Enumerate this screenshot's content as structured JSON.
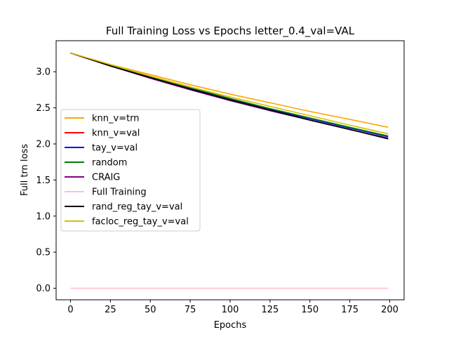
{
  "chart_data": {
    "type": "line",
    "title": "Full Training Loss vs Epochs letter_0.4_val=VAL",
    "xlabel": "Epochs",
    "ylabel": "Full trn loss",
    "xlim": [
      -9,
      209
    ],
    "ylim": [
      -0.16,
      3.43
    ],
    "xticks": [
      0,
      25,
      50,
      75,
      100,
      125,
      150,
      175,
      200
    ],
    "yticks": [
      0.0,
      0.5,
      1.0,
      1.5,
      2.0,
      2.5,
      3.0
    ],
    "xtick_labels": [
      "0",
      "25",
      "50",
      "75",
      "100",
      "125",
      "150",
      "175",
      "200"
    ],
    "ytick_labels": [
      "0.0",
      "0.5",
      "1.0",
      "1.5",
      "2.0",
      "2.5",
      "3.0"
    ],
    "grid": false,
    "legend_position": "center-left",
    "series": [
      {
        "name": "knn_v=trn",
        "color": "#ffa500",
        "x": [
          0,
          25,
          50,
          75,
          100,
          125,
          150,
          175,
          199
        ],
        "y": [
          3.26,
          3.1,
          2.96,
          2.82,
          2.69,
          2.57,
          2.45,
          2.34,
          2.23
        ]
      },
      {
        "name": "knn_v=val",
        "color": "#ff0000",
        "x": [
          0,
          25,
          50,
          75,
          100,
          125,
          150,
          175,
          199
        ],
        "y": [
          3.26,
          3.08,
          2.92,
          2.76,
          2.61,
          2.47,
          2.33,
          2.2,
          2.08
        ]
      },
      {
        "name": "tay_v=val",
        "color": "#0000ff",
        "x": [
          0,
          25,
          50,
          75,
          100,
          125,
          150,
          175,
          199
        ],
        "y": [
          3.26,
          3.09,
          2.93,
          2.77,
          2.62,
          2.48,
          2.35,
          2.22,
          2.1
        ]
      },
      {
        "name": "random",
        "color": "#008000",
        "x": [
          0,
          25,
          50,
          75,
          100,
          125,
          150,
          175,
          199
        ],
        "y": [
          3.26,
          3.09,
          2.93,
          2.78,
          2.63,
          2.49,
          2.36,
          2.23,
          2.11
        ]
      },
      {
        "name": "CRAIG",
        "color": "#800080",
        "x": [
          0,
          25,
          50,
          75,
          100,
          125,
          150,
          175,
          199
        ],
        "y": [
          3.26,
          3.08,
          2.91,
          2.75,
          2.6,
          2.46,
          2.33,
          2.2,
          2.08
        ]
      },
      {
        "name": "Full Training",
        "color": "#ffc0cb",
        "x": [
          0,
          25,
          50,
          75,
          100,
          125,
          150,
          175,
          199
        ],
        "y": [
          0.0,
          0.0,
          0.0,
          0.0,
          0.0,
          0.0,
          0.0,
          0.0,
          0.0
        ]
      },
      {
        "name": "rand_reg_tay_v=val",
        "color": "#000000",
        "x": [
          0,
          25,
          50,
          75,
          100,
          125,
          150,
          175,
          199
        ],
        "y": [
          3.26,
          3.08,
          2.92,
          2.76,
          2.61,
          2.47,
          2.33,
          2.2,
          2.07
        ]
      },
      {
        "name": "facloc_reg_tay_v=val",
        "color": "#d4c000",
        "x": [
          0,
          25,
          50,
          75,
          100,
          125,
          150,
          175,
          199
        ],
        "y": [
          3.26,
          3.1,
          2.94,
          2.79,
          2.65,
          2.52,
          2.39,
          2.26,
          2.14
        ]
      }
    ]
  }
}
